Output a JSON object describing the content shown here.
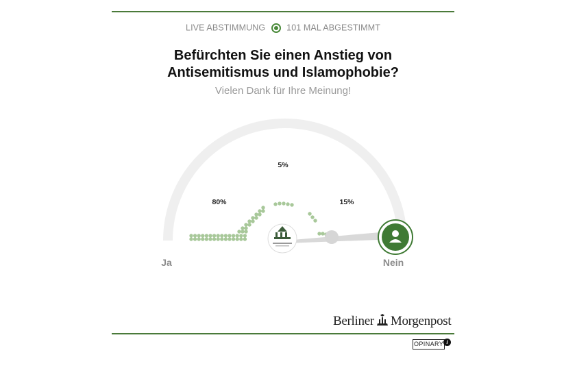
{
  "status": {
    "live_label": "LIVE ABSTIMMUNG",
    "votes_label": "101 MAL ABGESTIMMT"
  },
  "question": {
    "line1": "Befürchten Sie einen Anstieg von",
    "line2": "Antisemitismus und Islamophobie?"
  },
  "thanks_text": "Vielen Dank für Ihre Meinung!",
  "gauge": {
    "left_label": "Ja",
    "right_label": "Nein",
    "results": [
      {
        "name": "ja",
        "percent_label": "80%",
        "percent": 80
      },
      {
        "name": "middle",
        "percent_label": "5%",
        "percent": 5
      },
      {
        "name": "nein",
        "percent_label": "15%",
        "percent": 15
      }
    ],
    "user_position": "right-end",
    "colors": {
      "track": "#efefef",
      "dot": "#a8c89a",
      "accent": "#3f7a34",
      "needle": "#d9d9d9"
    }
  },
  "branding": {
    "publisher_left": "Berliner",
    "publisher_right": "Morgenpost",
    "provider": "OPINARY",
    "info_icon": "i"
  }
}
